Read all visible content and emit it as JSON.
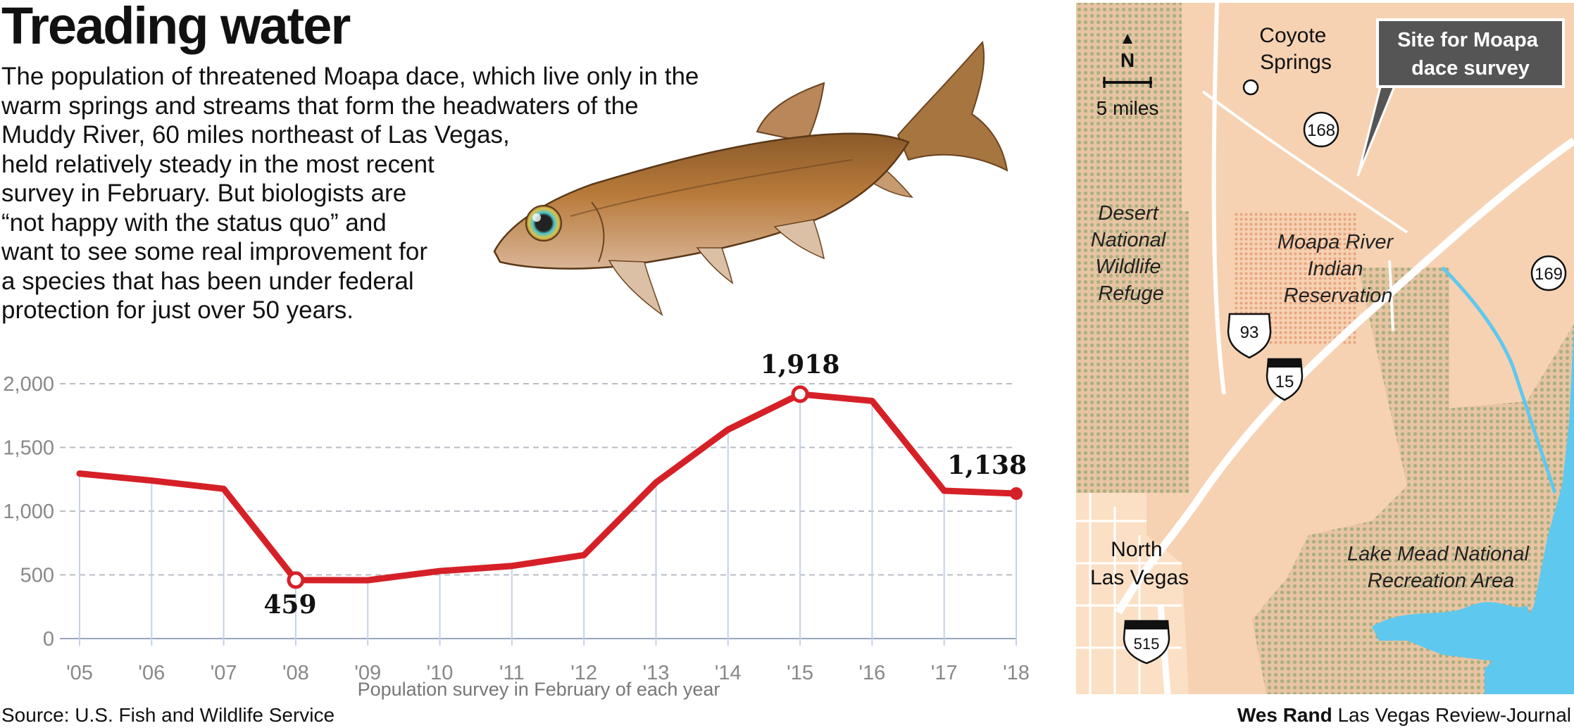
{
  "header": {
    "title": "Treading water",
    "intro_lines": [
      "The population of threatened Moapa dace, which live only in the",
      "warm springs and streams that form the headwaters of the",
      "Muddy River, 60 miles northeast of Las Vegas,",
      "held relatively steady in the most recent",
      "survey in February. But biologists are",
      "“not happy with the status quo” and",
      "want to see some real improvement for",
      "a species that has been under federal",
      "protection for just over 50 years."
    ]
  },
  "chart_data": {
    "type": "line",
    "categories": [
      "'05",
      "'06",
      "'07",
      "'08",
      "'09",
      "'10",
      "'11",
      "'12",
      "'13",
      "'14",
      "'15",
      "'16",
      "'17",
      "'18"
    ],
    "series": [
      {
        "values": [
          1295,
          1240,
          1175,
          459,
          458,
          530,
          570,
          655,
          1225,
          1640,
          1918,
          1865,
          1160,
          1138
        ]
      }
    ],
    "xlabel": "Population survey in February of each year",
    "ylabel": "",
    "ylim": [
      0,
      2000
    ],
    "yticks": [
      0,
      500,
      1000,
      1500,
      2000
    ],
    "ytick_labels": [
      "0",
      "500",
      "1,000",
      "1,500",
      "2,000"
    ],
    "annotations": [
      {
        "category": "'08",
        "value": 459,
        "label": "459"
      },
      {
        "category": "'15",
        "value": 1918,
        "label": "1,918"
      },
      {
        "category": "'18",
        "value": 1138,
        "label": "1,138"
      }
    ],
    "grid": "horizontal dashed and vertical light blue",
    "line_color": "#d62027"
  },
  "map": {
    "scale_north": "N",
    "scale_label": "5 miles",
    "callout": [
      "Site for Moapa",
      "dace survey"
    ],
    "places": {
      "coyote_springs": [
        "Coyote",
        "Springs"
      ],
      "desert_refuge": [
        "Desert",
        "National",
        "Wildlife",
        "Refuge"
      ],
      "moapa_reservation": [
        "Moapa River",
        "Indian",
        "Reservation"
      ],
      "north_las_vegas": [
        "North",
        "Las Vegas"
      ],
      "lake_mead": [
        "Lake Mead National",
        "Recreation Area"
      ]
    },
    "shields": {
      "r168": "168",
      "r169": "169",
      "us93": "93",
      "i15": "15",
      "i515": "515"
    },
    "colors": {
      "land": "#f6d2b3",
      "reservation": "#f2b896",
      "park": "#c4c59a",
      "water": "#5fc8ee",
      "road": "#ffffff"
    }
  },
  "footer": {
    "source": "Source: U.S. Fish and Wildlife Service",
    "credit_name": "Wes Rand",
    "credit_org": "Las Vegas Review-Journal"
  }
}
